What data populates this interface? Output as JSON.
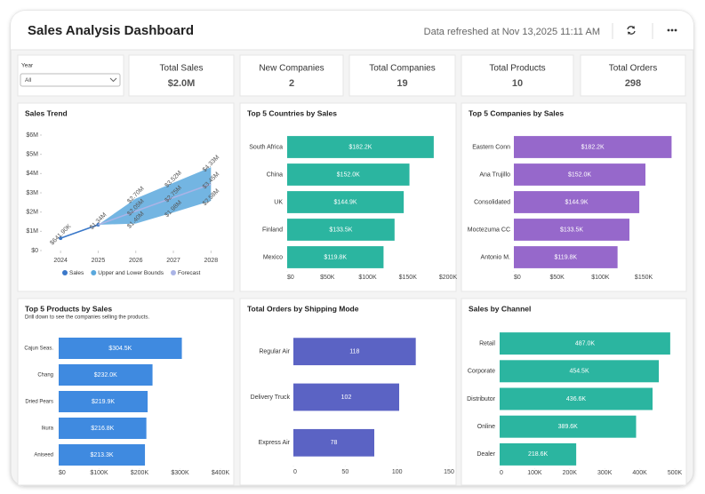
{
  "header": {
    "title": "Sales Analysis Dashboard",
    "refreshed": "Data refreshed at Nov 13,2025 11:11 AM"
  },
  "filter": {
    "label": "Year",
    "value": "All"
  },
  "kpis": [
    {
      "label": "Total Sales",
      "value": "$2.0M"
    },
    {
      "label": "New Companies",
      "value": 2
    },
    {
      "label": "Total Companies",
      "value": 19
    },
    {
      "label": "Total Products",
      "value": 10
    },
    {
      "label": "Total Orders",
      "value": 298
    }
  ],
  "chart_data": [
    {
      "type": "line",
      "title": "Sales Trend",
      "x": [
        2024,
        2025,
        2026,
        2027,
        2028
      ],
      "xlim": [
        2023.5,
        2028.3
      ],
      "xticks": [
        2024,
        2025,
        2026,
        2027,
        2028
      ],
      "ylim": [
        0,
        6000000
      ],
      "yticks": [
        {
          "value": 0,
          "label": "$0"
        },
        {
          "value": 1000000,
          "label": "$1M"
        },
        {
          "value": 2000000,
          "label": "$2M"
        },
        {
          "value": 3000000,
          "label": "$3M"
        },
        {
          "value": 4000000,
          "label": "$4M"
        },
        {
          "value": 5000000,
          "label": "$5M"
        },
        {
          "value": 6000000,
          "label": "$6M"
        }
      ],
      "series": [
        {
          "name": "Sales",
          "color": "#3a78c9",
          "values": [
            641900,
            1340000,
            null,
            null,
            null
          ],
          "value_labels": [
            "$641.90K",
            "$1.34M",
            null,
            null,
            null
          ]
        },
        {
          "name": "Upper and Lower Bounds",
          "color": "#5aa8dd",
          "upper": [
            null,
            1340000,
            2700000,
            3520000,
            4330000
          ],
          "upper_labels": [
            null,
            null,
            "$2.70M",
            "$3.52M",
            "$4.33M"
          ],
          "lower": [
            null,
            1340000,
            1400000,
            1980000,
            2580000
          ],
          "lower_labels": [
            null,
            null,
            "$1.40M",
            "$1.98M",
            "$2.58M"
          ]
        },
        {
          "name": "Forecast",
          "color": "#aab4e6",
          "values": [
            null,
            1340000,
            2050000,
            2750000,
            3450000
          ],
          "value_labels": [
            null,
            null,
            "$2.05M",
            "$2.75M",
            "$3.45M"
          ]
        }
      ]
    },
    {
      "type": "hbar",
      "title": "Top 5 Countries by Sales",
      "color": "#2bb5a0",
      "categories": [
        "South Africa",
        "China",
        "UK",
        "Finland",
        "Mexico"
      ],
      "values": [
        182200,
        152000,
        144900,
        133500,
        119800
      ],
      "value_labels": [
        "$182.2K",
        "$152.0K",
        "$144.9K",
        "$133.5K",
        "$119.8K"
      ],
      "xlim": [
        0,
        200000
      ],
      "xticks": [
        {
          "value": 0,
          "label": "$0"
        },
        {
          "value": 50000,
          "label": "$50K"
        },
        {
          "value": 100000,
          "label": "$100K"
        },
        {
          "value": 150000,
          "label": "$150K"
        },
        {
          "value": 200000,
          "label": "$200K"
        }
      ]
    },
    {
      "type": "hbar",
      "title": "Top 5 Companies by Sales",
      "color": "#9668cb",
      "categories": [
        "Eastern Conn",
        "Ana Trujillo",
        "Consolidated",
        "Moctezuma CC",
        "Antonio M."
      ],
      "values": [
        182200,
        152000,
        144900,
        133500,
        119800
      ],
      "value_labels": [
        "$182.2K",
        "$152.0K",
        "$144.9K",
        "$133.5K",
        "$119.8K"
      ],
      "xlim": [
        0,
        190000
      ],
      "xticks": [
        {
          "value": 0,
          "label": "$0"
        },
        {
          "value": 50000,
          "label": "$50K"
        },
        {
          "value": 100000,
          "label": "$100K"
        },
        {
          "value": 150000,
          "label": "$150K"
        }
      ]
    },
    {
      "type": "hbar",
      "title": "Top 5 Products by Sales",
      "subtitle": "Drill down to see the companies selling the products.",
      "color": "#3f8ae0",
      "categories": [
        "Cajun Seas.",
        "Chang",
        "Dried Pears",
        "Ikura",
        "Aniseed"
      ],
      "values": [
        304500,
        232000,
        219900,
        216800,
        213300
      ],
      "value_labels": [
        "$304.5K",
        "$232.0K",
        "$219.9K",
        "$216.8K",
        "$213.3K"
      ],
      "xlim": [
        0,
        400000
      ],
      "xticks": [
        {
          "value": 0,
          "label": "$0"
        },
        {
          "value": 100000,
          "label": "$100K"
        },
        {
          "value": 200000,
          "label": "$200K"
        },
        {
          "value": 300000,
          "label": "$300K"
        },
        {
          "value": 400000,
          "label": "$400K"
        }
      ]
    },
    {
      "type": "hbar",
      "title": "Total Orders by Shipping Mode",
      "color": "#5b63c4",
      "categories": [
        "Regular Air",
        "Delivery Truck",
        "Express Air"
      ],
      "values": [
        118,
        102,
        78
      ],
      "xlim": [
        0,
        150
      ],
      "xticks": [
        0,
        50,
        100,
        150
      ]
    },
    {
      "type": "hbar",
      "title": "Sales by Channel",
      "color": "#2bb5a0",
      "categories": [
        "Retail",
        "Corporate",
        "Distributor",
        "Online",
        "Dealer"
      ],
      "values": [
        487000,
        454500,
        436600,
        389600,
        218600
      ],
      "value_labels": [
        "487.0K",
        "454.5K",
        "436.6K",
        "389.6K",
        "218.6K"
      ],
      "xlim": [
        0,
        500000
      ],
      "xticks": [
        {
          "value": 0,
          "label": "0"
        },
        {
          "value": 100000,
          "label": "100K"
        },
        {
          "value": 200000,
          "label": "200K"
        },
        {
          "value": 300000,
          "label": "300K"
        },
        {
          "value": 400000,
          "label": "400K"
        },
        {
          "value": 500000,
          "label": "500K"
        }
      ]
    }
  ]
}
